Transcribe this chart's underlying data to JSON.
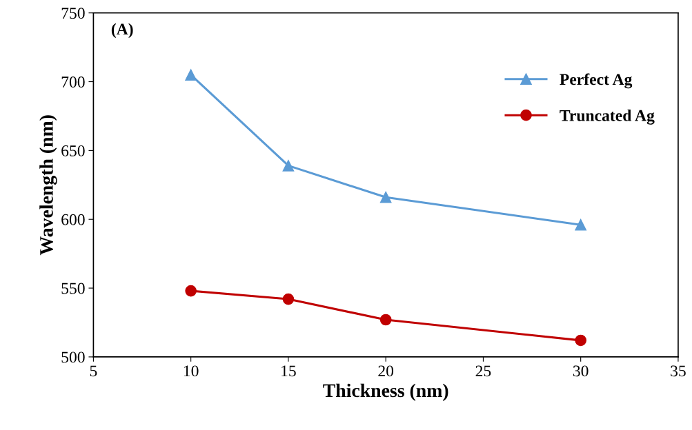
{
  "chart_data": {
    "type": "line",
    "xlabel": "Thickness (nm)",
    "ylabel": "Wavelength (nm)",
    "annotations": [
      "(A)"
    ],
    "xlim": [
      5,
      35
    ],
    "xticks": [
      5,
      10,
      15,
      20,
      25,
      30,
      35
    ],
    "ylim": [
      500,
      750
    ],
    "yticks": [
      500,
      550,
      600,
      650,
      700,
      750
    ],
    "grid": false,
    "legend": "right",
    "line_style": "solid",
    "series": [
      {
        "name": "Perfect Ag",
        "color": "#5b9bd5",
        "marker": "triangle",
        "x": [
          10,
          15,
          20,
          30
        ],
        "values": [
          705,
          639,
          616,
          596
        ]
      },
      {
        "name": "Truncated Ag",
        "color": "#c00000",
        "marker": "circle",
        "x": [
          10,
          15,
          20,
          30
        ],
        "values": [
          548,
          542,
          527,
          512
        ]
      }
    ]
  }
}
